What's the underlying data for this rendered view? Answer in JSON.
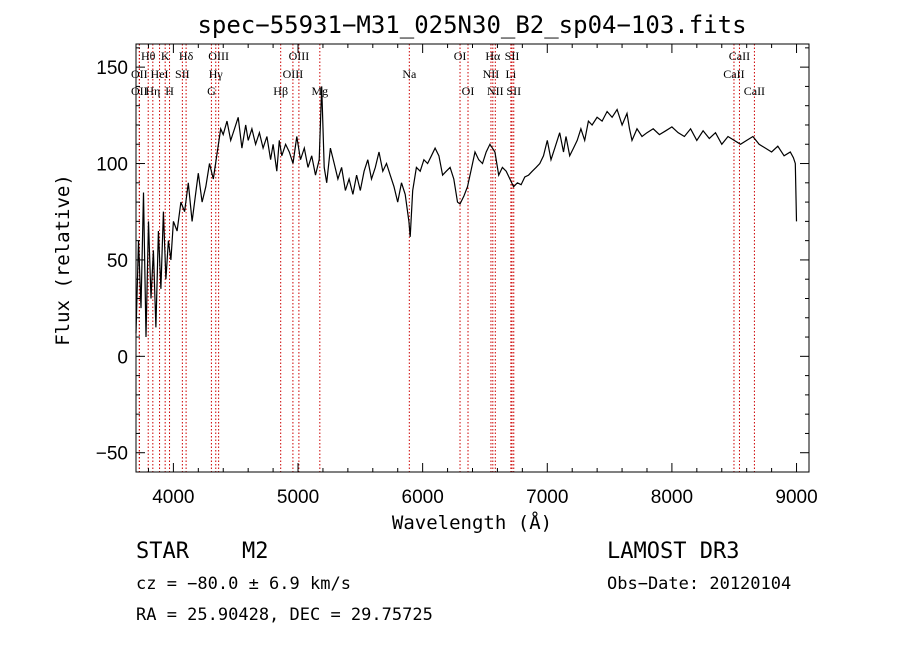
{
  "chart_data": {
    "type": "line",
    "title": "spec−55931−M31_025N30_B2_sp04−103.fits",
    "xlabel": "Wavelength (Å)",
    "ylabel": "Flux (relative)",
    "xlim": [
      3700,
      9100
    ],
    "ylim": [
      -60,
      162
    ],
    "x_ticks": [
      4000,
      5000,
      6000,
      7000,
      8000,
      9000
    ],
    "y_ticks": [
      -50,
      0,
      50,
      100,
      150
    ],
    "grid": false,
    "line_color": "#000000",
    "marker_color": "#cc0000",
    "series": [
      {
        "x": [
          3700,
          3720,
          3740,
          3760,
          3780,
          3800,
          3820,
          3840,
          3860,
          3880,
          3900,
          3920,
          3940,
          3960,
          3980,
          4000,
          4030,
          4060,
          4090,
          4120,
          4150,
          4180,
          4200,
          4230,
          4260,
          4290,
          4320,
          4350,
          4380,
          4400,
          4430,
          4460,
          4490,
          4520,
          4550,
          4580,
          4600,
          4630,
          4660,
          4690,
          4720,
          4750,
          4780,
          4800,
          4830,
          4850,
          4870,
          4900,
          4930,
          4960,
          4990,
          5020,
          5050,
          5080,
          5110,
          5140,
          5170,
          5190,
          5210,
          5230,
          5260,
          5290,
          5320,
          5350,
          5380,
          5410,
          5440,
          5470,
          5500,
          5530,
          5560,
          5590,
          5620,
          5650,
          5680,
          5710,
          5740,
          5770,
          5800,
          5830,
          5860,
          5890,
          5900,
          5920,
          5950,
          5980,
          6010,
          6040,
          6070,
          6100,
          6130,
          6160,
          6190,
          6220,
          6250,
          6280,
          6300,
          6330,
          6360,
          6390,
          6420,
          6450,
          6480,
          6510,
          6540,
          6560,
          6580,
          6610,
          6640,
          6670,
          6700,
          6730,
          6760,
          6790,
          6820,
          6850,
          6880,
          6910,
          6940,
          6970,
          7000,
          7030,
          7060,
          7100,
          7130,
          7150,
          7180,
          7210,
          7240,
          7270,
          7300,
          7330,
          7360,
          7400,
          7440,
          7480,
          7520,
          7560,
          7600,
          7640,
          7660,
          7680,
          7720,
          7760,
          7800,
          7850,
          7900,
          7950,
          8000,
          8050,
          8100,
          8150,
          8200,
          8250,
          8300,
          8350,
          8400,
          8450,
          8500,
          8550,
          8600,
          8650,
          8700,
          8750,
          8800,
          8850,
          8900,
          8950,
          8975,
          8990,
          9000
        ],
        "y": [
          12,
          60,
          25,
          85,
          10,
          70,
          30,
          55,
          15,
          65,
          35,
          75,
          40,
          60,
          50,
          70,
          65,
          80,
          75,
          90,
          70,
          85,
          95,
          80,
          88,
          100,
          92,
          105,
          118,
          115,
          122,
          112,
          118,
          124,
          108,
          120,
          112,
          118,
          110,
          116,
          108,
          114,
          102,
          110,
          96,
          112,
          104,
          110,
          106,
          100,
          114,
          102,
          108,
          98,
          104,
          94,
          102,
          140,
          98,
          90,
          108,
          100,
          92,
          98,
          86,
          92,
          84,
          94,
          86,
          96,
          102,
          92,
          98,
          106,
          96,
          100,
          94,
          88,
          80,
          90,
          84,
          70,
          62,
          86,
          98,
          96,
          102,
          100,
          104,
          108,
          104,
          94,
          96,
          98,
          92,
          80,
          79,
          83,
          88,
          97,
          106,
          102,
          100,
          106,
          110,
          108,
          106,
          94,
          98,
          96,
          92,
          88,
          90,
          89,
          93,
          94,
          96,
          98,
          100,
          104,
          112,
          102,
          108,
          116,
          106,
          114,
          104,
          108,
          112,
          118,
          112,
          122,
          120,
          124,
          122,
          127,
          124,
          128,
          120,
          126,
          118,
          112,
          118,
          114,
          116,
          118,
          115,
          117,
          119,
          116,
          114,
          118,
          112,
          117,
          113,
          116,
          110,
          114,
          112,
          110,
          112,
          114,
          110,
          108,
          106,
          109,
          104,
          106,
          103,
          100,
          70
        ]
      }
    ],
    "line_markers": [
      {
        "name": "Hθ",
        "x": 3798,
        "row": 0
      },
      {
        "name": "K",
        "x": 3934,
        "row": 0
      },
      {
        "name": "Hδ",
        "x": 4102,
        "row": 0
      },
      {
        "name": "OIII",
        "x": 4363,
        "row": 0
      },
      {
        "name": "OIII",
        "x": 5007,
        "row": 0
      },
      {
        "name": "OI",
        "x": 6300,
        "row": 0
      },
      {
        "name": "Hα",
        "x": 6563,
        "row": 0
      },
      {
        "name": "SII",
        "x": 6717,
        "row": 0
      },
      {
        "name": "CaII",
        "x": 8542,
        "row": 0
      },
      {
        "name": "OII",
        "x": 3727,
        "row": 1
      },
      {
        "name": "HeI",
        "x": 3889,
        "row": 1
      },
      {
        "name": "SII",
        "x": 4072,
        "row": 1
      },
      {
        "name": "Hγ",
        "x": 4340,
        "row": 1
      },
      {
        "name": "OIII",
        "x": 4959,
        "row": 1
      },
      {
        "name": "Na",
        "x": 5893,
        "row": 1
      },
      {
        "name": "NII",
        "x": 6548,
        "row": 1
      },
      {
        "name": "Li",
        "x": 6708,
        "row": 1
      },
      {
        "name": "CaII",
        "x": 8498,
        "row": 1
      },
      {
        "name": "OII",
        "x": 3727,
        "row": 2
      },
      {
        "name": "Hη",
        "x": 3835,
        "row": 2
      },
      {
        "name": "H",
        "x": 3969,
        "row": 2
      },
      {
        "name": "G",
        "x": 4305,
        "row": 2
      },
      {
        "name": "Hβ",
        "x": 4861,
        "row": 2
      },
      {
        "name": "Mg",
        "x": 5175,
        "row": 2
      },
      {
        "name": "OI",
        "x": 6364,
        "row": 2
      },
      {
        "name": "NII",
        "x": 6583,
        "row": 2
      },
      {
        "name": "SII",
        "x": 6731,
        "row": 2
      },
      {
        "name": "CaII",
        "x": 8662,
        "row": 2
      }
    ]
  },
  "info": {
    "object_class": "STAR",
    "subclass": "M2",
    "survey": "LAMOST DR3",
    "cz": "cz = −80.0 ± 6.9 km/s",
    "obs_date": "Obs−Date: 20120104",
    "coords": "RA =  25.90428, DEC =  29.75725"
  }
}
